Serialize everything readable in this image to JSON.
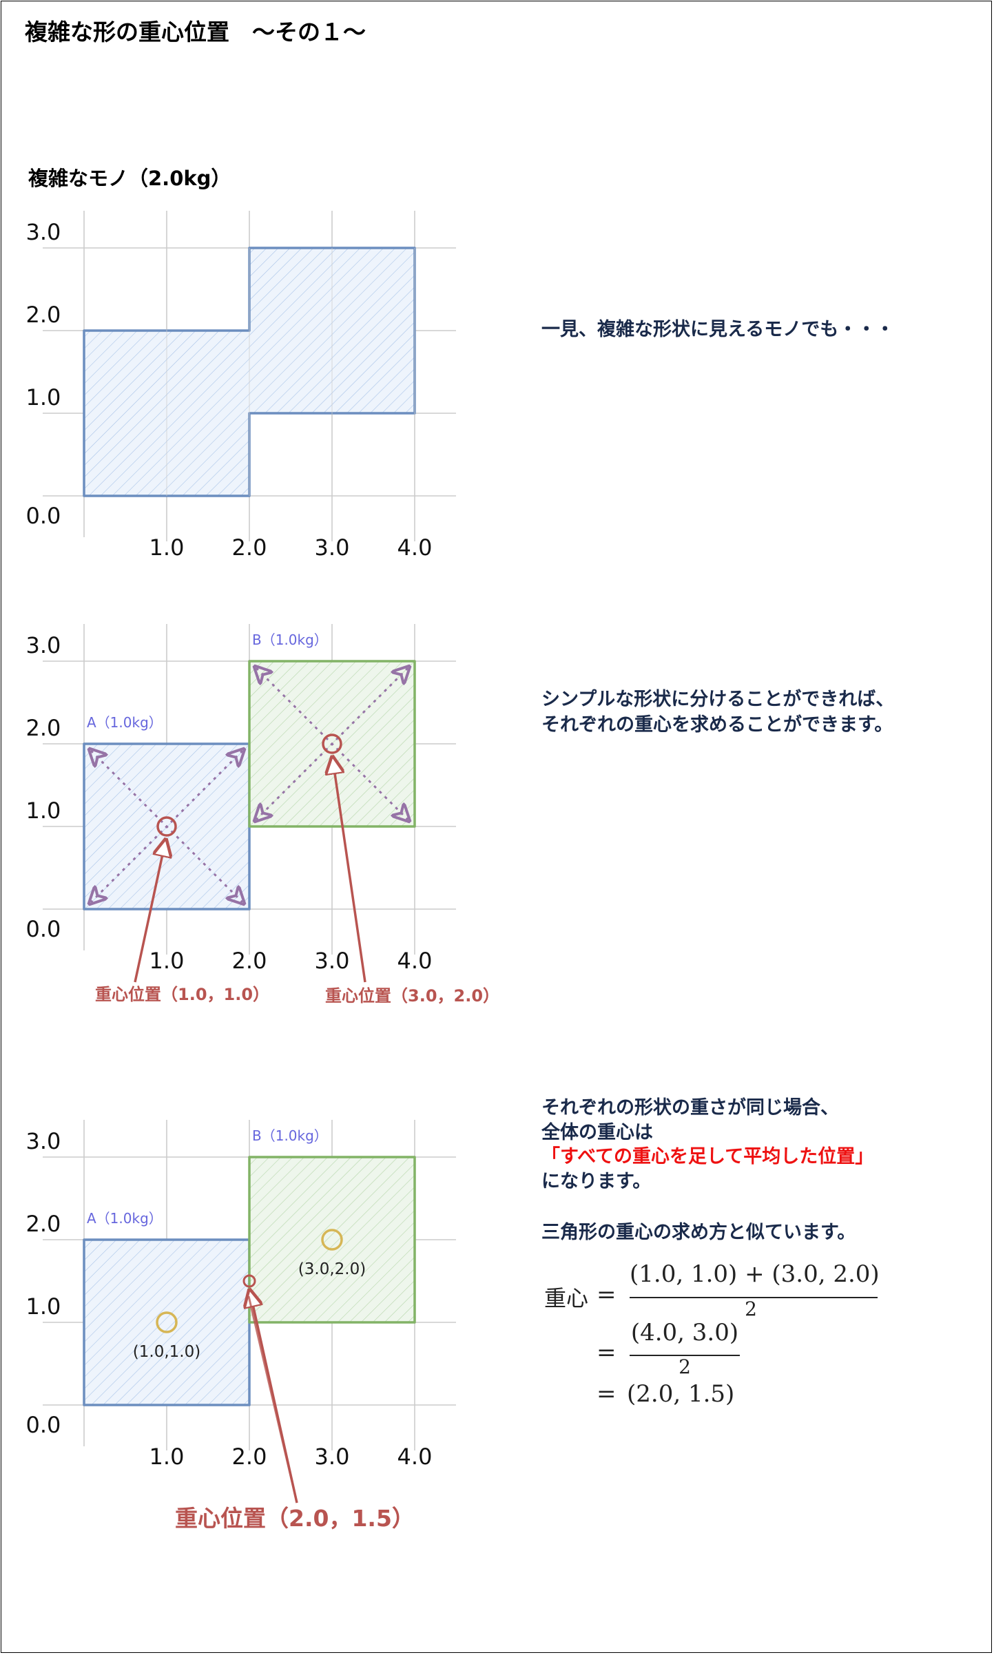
{
  "page": {
    "title": "複雑な形の重心位置　～その１～",
    "object_label": "複雑なモノ（2.0kg）"
  },
  "axis": {
    "x_ticks": [
      "1.0",
      "2.0",
      "3.0",
      "4.0"
    ],
    "y_ticks": [
      "0.0",
      "1.0",
      "2.0",
      "3.0"
    ],
    "x_values": [
      1,
      2,
      3,
      4
    ],
    "y_values": [
      0,
      1,
      2,
      3
    ]
  },
  "colors": {
    "shape_a": "#6c8ebf",
    "shape_a_fill": "#dae8fc",
    "shape_b": "#82b366",
    "shape_b_fill": "#d5e8d4",
    "diagonal": "#9673a6",
    "annotation": "#b85450",
    "center_marker": "#d6b656",
    "grid": "#cccccc"
  },
  "panel1": {
    "outline": [
      [
        0,
        0
      ],
      [
        2,
        0
      ],
      [
        2,
        1
      ],
      [
        4,
        1
      ],
      [
        4,
        3
      ],
      [
        2,
        3
      ],
      [
        2,
        2
      ],
      [
        0,
        2
      ]
    ]
  },
  "panel2": {
    "label_a": "A（1.0kg）",
    "label_b": "B（1.0kg）",
    "rect_a": {
      "x0": 0,
      "y0": 0,
      "x1": 2,
      "y1": 2
    },
    "rect_b": {
      "x0": 2,
      "y0": 1,
      "x1": 4,
      "y1": 3
    },
    "center_a": [
      1.0,
      1.0
    ],
    "center_b": [
      3.0,
      2.0
    ],
    "center_a_label": "重心位置（1.0，1.0）",
    "center_b_label": "重心位置（3.0，2.0）"
  },
  "panel3": {
    "label_a": "A（1.0kg）",
    "label_b": "B（1.0kg）",
    "rect_a": {
      "x0": 0,
      "y0": 0,
      "x1": 2,
      "y1": 2
    },
    "rect_b": {
      "x0": 2,
      "y0": 1,
      "x1": 4,
      "y1": 3
    },
    "center_a": [
      1.0,
      1.0
    ],
    "center_b": [
      3.0,
      2.0
    ],
    "center_a_text": "(1.0,1.0)",
    "center_b_text": "(3.0,2.0)",
    "overall_center": [
      2.0,
      1.5
    ],
    "overall_label": "重心位置（2.0，1.5）"
  },
  "explanations": {
    "text1": "一見、複雑な形状に見えるモノでも・・・",
    "text2_line1": "シンプルな形状に分けることができれば、",
    "text2_line2": "それぞれの重心を求めることができます。",
    "text3_line1": "それぞれの形状の重さが同じ場合、",
    "text3_line2": "全体の重心は",
    "text3_highlight": "「すべての重心を足して平均した位置」",
    "text3_line4": "になります。",
    "text4": "三角形の重心の求め方と似ています。"
  },
  "equation": {
    "lhs": "重心",
    "eq": "=",
    "num1": "(1.0, 1.0) + (3.0, 2.0)",
    "den1": "2",
    "num2": "(4.0, 3.0)",
    "den2": "2",
    "result": "(2.0, 1.5)"
  }
}
